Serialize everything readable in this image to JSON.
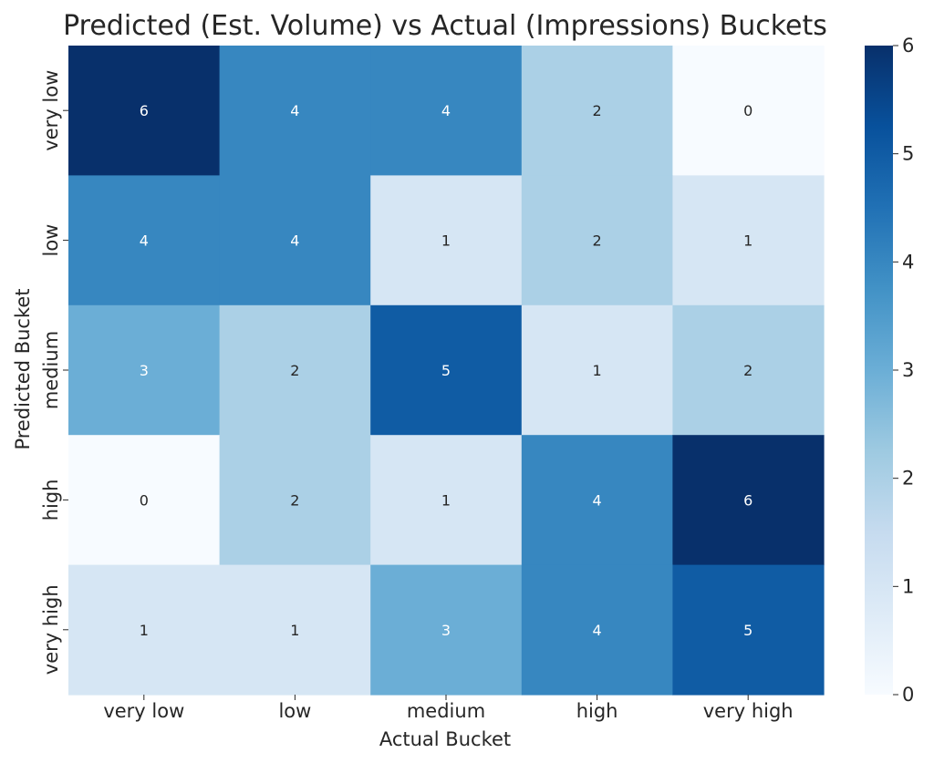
{
  "chart_data": {
    "type": "heatmap",
    "title": "Predicted (Est. Volume) vs Actual (Impressions) Buckets",
    "xlabel": "Actual Bucket",
    "ylabel": "Predicted Bucket",
    "x_categories": [
      "very low",
      "low",
      "medium",
      "high",
      "very high"
    ],
    "y_categories": [
      "very low",
      "low",
      "medium",
      "high",
      "very high"
    ],
    "values": [
      [
        6,
        4,
        4,
        2,
        0
      ],
      [
        4,
        4,
        1,
        2,
        1
      ],
      [
        3,
        2,
        5,
        1,
        2
      ],
      [
        0,
        2,
        1,
        4,
        6
      ],
      [
        1,
        1,
        3,
        4,
        5
      ]
    ],
    "value_range": [
      0,
      6
    ],
    "colorbar_ticks": [
      0,
      1,
      2,
      3,
      4,
      5,
      6
    ],
    "colormap": "Blues",
    "colormap_stops": [
      "#f7fbff",
      "#deebf7",
      "#c6dbef",
      "#9ecae1",
      "#6baed6",
      "#4292c6",
      "#2171b5",
      "#08519c",
      "#08306b"
    ],
    "annotated": true
  }
}
